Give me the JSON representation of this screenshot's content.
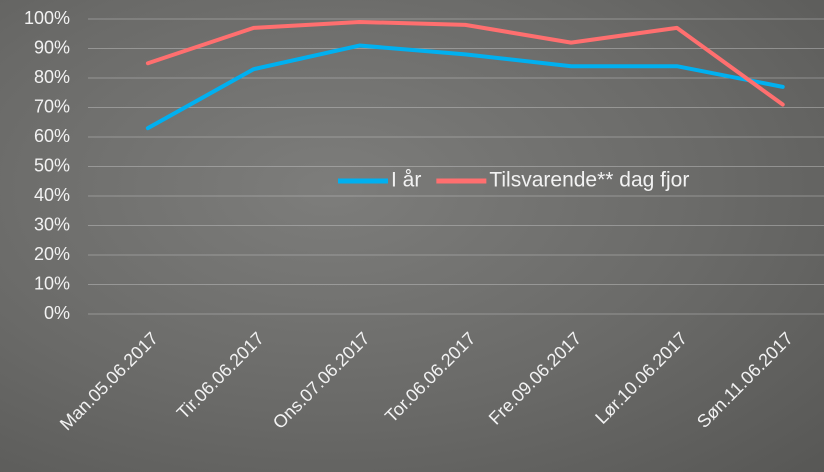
{
  "chart_data": {
    "type": "line",
    "categories": [
      "Man.05.06.2017",
      "Tir.06.06.2017",
      "Ons.07.06.2017",
      "Tor.06.06.2017",
      "Fre.09.06.2017",
      "Lør.10.06.2017",
      "Søn.11.06.2017"
    ],
    "series": [
      {
        "name": "I år",
        "color": "#00b0f0",
        "values": [
          63,
          83,
          91,
          88,
          84,
          84,
          77
        ]
      },
      {
        "name": "Tilsvarende** dag fjor",
        "color": "#ff6f6f",
        "values": [
          85,
          97,
          99,
          98,
          92,
          97,
          71
        ]
      }
    ],
    "ylim": [
      0,
      100
    ],
    "yticks": [
      {
        "value": 0,
        "label": "0%"
      },
      {
        "value": 10,
        "label": "10%"
      },
      {
        "value": 20,
        "label": "20%"
      },
      {
        "value": 30,
        "label": "30%"
      },
      {
        "value": 40,
        "label": "40%"
      },
      {
        "value": 50,
        "label": "50%"
      },
      {
        "value": 60,
        "label": "60%"
      },
      {
        "value": 70,
        "label": "70%"
      },
      {
        "value": 80,
        "label": "80%"
      },
      {
        "value": 90,
        "label": "90%"
      },
      {
        "value": 100,
        "label": "100%"
      }
    ],
    "grid": true,
    "legend_position": "right"
  }
}
